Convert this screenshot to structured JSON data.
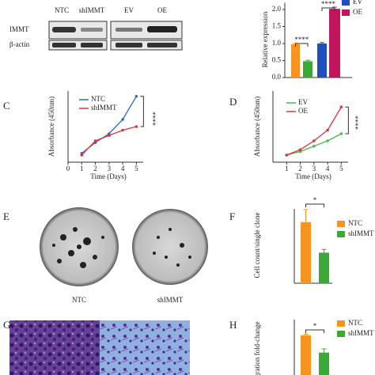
{
  "panel_labels": [
    "C",
    "D",
    "E",
    "F",
    "G",
    "H"
  ],
  "blot": {
    "lanes": [
      "NTC",
      "shIMMT",
      "EV",
      "OE"
    ],
    "rows": [
      "IMMT",
      "β-actin"
    ]
  },
  "colony_labels": [
    "NTC",
    "shIMMT"
  ],
  "chart_data": [
    {
      "type": "bar",
      "y_label": "Relative expression",
      "series": [
        {
          "name": "NTC",
          "color": "#f7931e",
          "values": [
            0.98
          ],
          "errors": [
            0.03
          ]
        },
        {
          "name": "shIMMT",
          "color": "#3aa935",
          "values": [
            0.48
          ],
          "errors": [
            0.03
          ]
        },
        {
          "name": "EV",
          "color": "#1f4fbf",
          "values": [
            1.0
          ],
          "errors": [
            0.03
          ]
        },
        {
          "name": "OE",
          "color": "#c0145c",
          "values": [
            2.02
          ],
          "errors": [
            0.05
          ]
        }
      ],
      "ylim": [
        0,
        2.2
      ],
      "yticks": [
        {
          "value": 0,
          "label": "0.0"
        },
        {
          "value": 0.5,
          "label": "0.5"
        },
        {
          "value": 1,
          "label": "1.0"
        },
        {
          "value": 1.5,
          "label": "1.5"
        },
        {
          "value": 2,
          "label": "2.0"
        }
      ],
      "annotations": [
        "****",
        "****"
      ]
    },
    {
      "type": "line",
      "x_label": "Time (Days)",
      "y_label": "Absorbance (450nm)",
      "x": [
        1,
        2,
        3,
        4,
        5
      ],
      "xlim": [
        0,
        5.5
      ],
      "xticks": [
        0,
        1,
        2,
        3,
        4,
        5
      ],
      "ylim": [
        0,
        2
      ],
      "series": [
        {
          "name": "NTC",
          "color": "#2b6cc4",
          "values": [
            0.25,
            0.55,
            0.8,
            1.2,
            1.85
          ]
        },
        {
          "name": "shIMMT",
          "color": "#e0323c",
          "values": [
            0.2,
            0.6,
            0.75,
            0.9,
            1.0
          ]
        }
      ],
      "annotations": [
        "****"
      ]
    },
    {
      "type": "line",
      "x_label": "Time (Days)",
      "y_label": "Absorbance (450nm)",
      "x": [
        1,
        2,
        3,
        4,
        5
      ],
      "xlim": [
        0,
        5.5
      ],
      "xticks": [
        1,
        2,
        3,
        4,
        5
      ],
      "ylim": [
        0,
        2
      ],
      "series": [
        {
          "name": "EV",
          "color": "#4cb84c",
          "values": [
            0.2,
            0.3,
            0.45,
            0.6,
            0.8
          ]
        },
        {
          "name": "OE",
          "color": "#e0323c",
          "values": [
            0.2,
            0.35,
            0.6,
            0.9,
            1.55
          ]
        }
      ],
      "annotations": [
        "****"
      ]
    },
    {
      "type": "bar",
      "y_label": "Cell count/single clone",
      "ylim": [
        0,
        560
      ],
      "series": [
        {
          "name": "NTC",
          "color": "#f7931e",
          "values": [
            460
          ],
          "errors": [
            95
          ]
        },
        {
          "name": "shIMMT",
          "color": "#3aa935",
          "values": [
            230
          ],
          "errors": [
            25
          ]
        }
      ],
      "annotations": [
        "*"
      ]
    },
    {
      "type": "bar",
      "y_label": "Migration fold-change",
      "ylim": [
        0,
        1.3
      ],
      "series": [
        {
          "name": "NTC",
          "color": "#f7931e",
          "values": [
            1.0
          ],
          "errors": [
            0.02
          ]
        },
        {
          "name": "shIMMT",
          "color": "#3aa935",
          "values": [
            0.67
          ],
          "errors": [
            0.07
          ]
        }
      ],
      "annotations": [
        "*"
      ]
    }
  ]
}
